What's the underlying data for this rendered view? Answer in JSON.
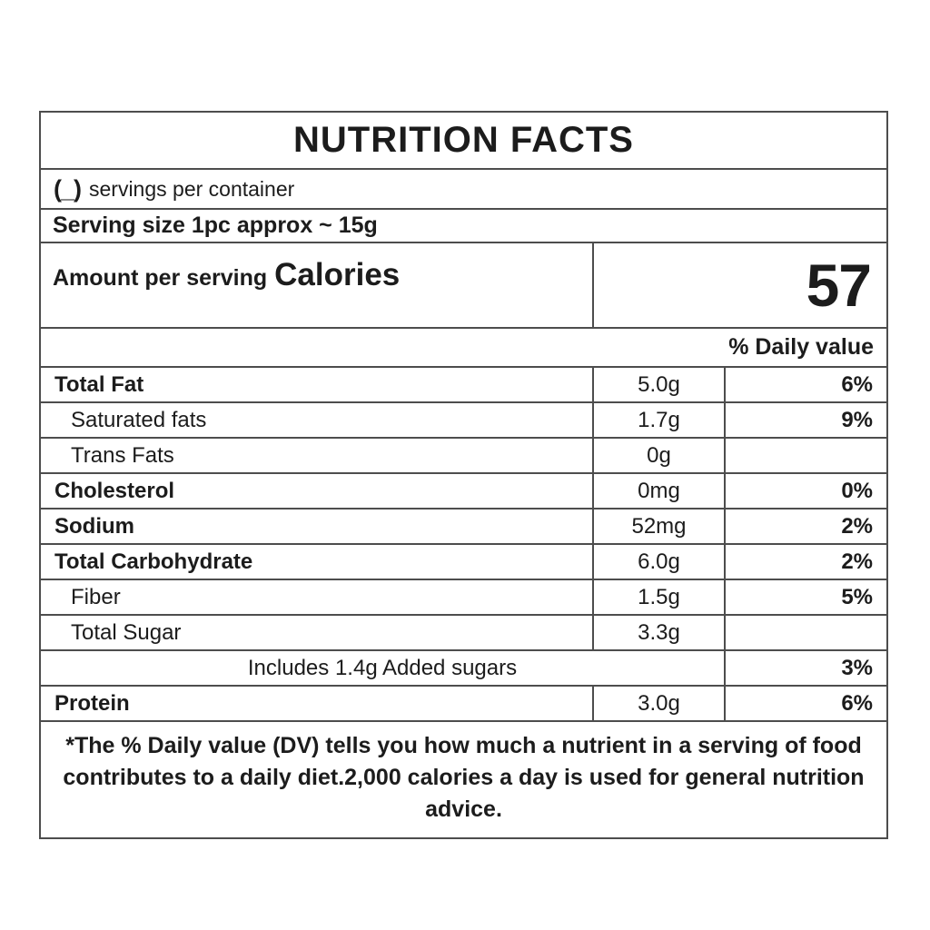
{
  "label": {
    "title": "NUTRITION FACTS",
    "servings_prefix": "(_)",
    "servings_text": "servings per container",
    "serving_size": "Serving size 1pc approx ~ 15g",
    "amount_per_serving": "Amount per serving",
    "calories_label": "Calories",
    "calories_value": "57",
    "daily_value_header": "% Daily value",
    "footnote": "*The % Daily value (DV) tells you how much a nutrient in a serving of food contributes to a daily diet.2,000 calories a day is used for general nutrition advice."
  },
  "nutrients": [
    {
      "name": "Total Fat",
      "amount": "5.0g",
      "dv": "6%",
      "bold": true,
      "indent": false,
      "span": false
    },
    {
      "name": "Saturated fats",
      "amount": "1.7g",
      "dv": "9%",
      "bold": false,
      "indent": true,
      "span": false
    },
    {
      "name": "Trans Fats",
      "amount": "0g",
      "dv": "",
      "bold": false,
      "indent": true,
      "span": false
    },
    {
      "name": "Cholesterol",
      "amount": "0mg",
      "dv": "0%",
      "bold": true,
      "indent": false,
      "span": false
    },
    {
      "name": "Sodium",
      "amount": "52mg",
      "dv": "2%",
      "bold": true,
      "indent": false,
      "span": false
    },
    {
      "name": "Total Carbohydrate",
      "amount": "6.0g",
      "dv": "2%",
      "bold": true,
      "indent": false,
      "span": false
    },
    {
      "name": "Fiber",
      "amount": "1.5g",
      "dv": "5%",
      "bold": false,
      "indent": true,
      "span": false
    },
    {
      "name": "Total Sugar",
      "amount": "3.3g",
      "dv": "",
      "bold": false,
      "indent": true,
      "span": false
    },
    {
      "name": "Includes 1.4g Added sugars",
      "amount": "",
      "dv": "3%",
      "bold": false,
      "indent": false,
      "span": true
    },
    {
      "name": "Protein",
      "amount": "3.0g",
      "dv": "6%",
      "bold": true,
      "indent": false,
      "span": false
    }
  ],
  "colors": {
    "border": "#4d4d4d",
    "text": "#1c1c1c",
    "background": "#ffffff"
  }
}
